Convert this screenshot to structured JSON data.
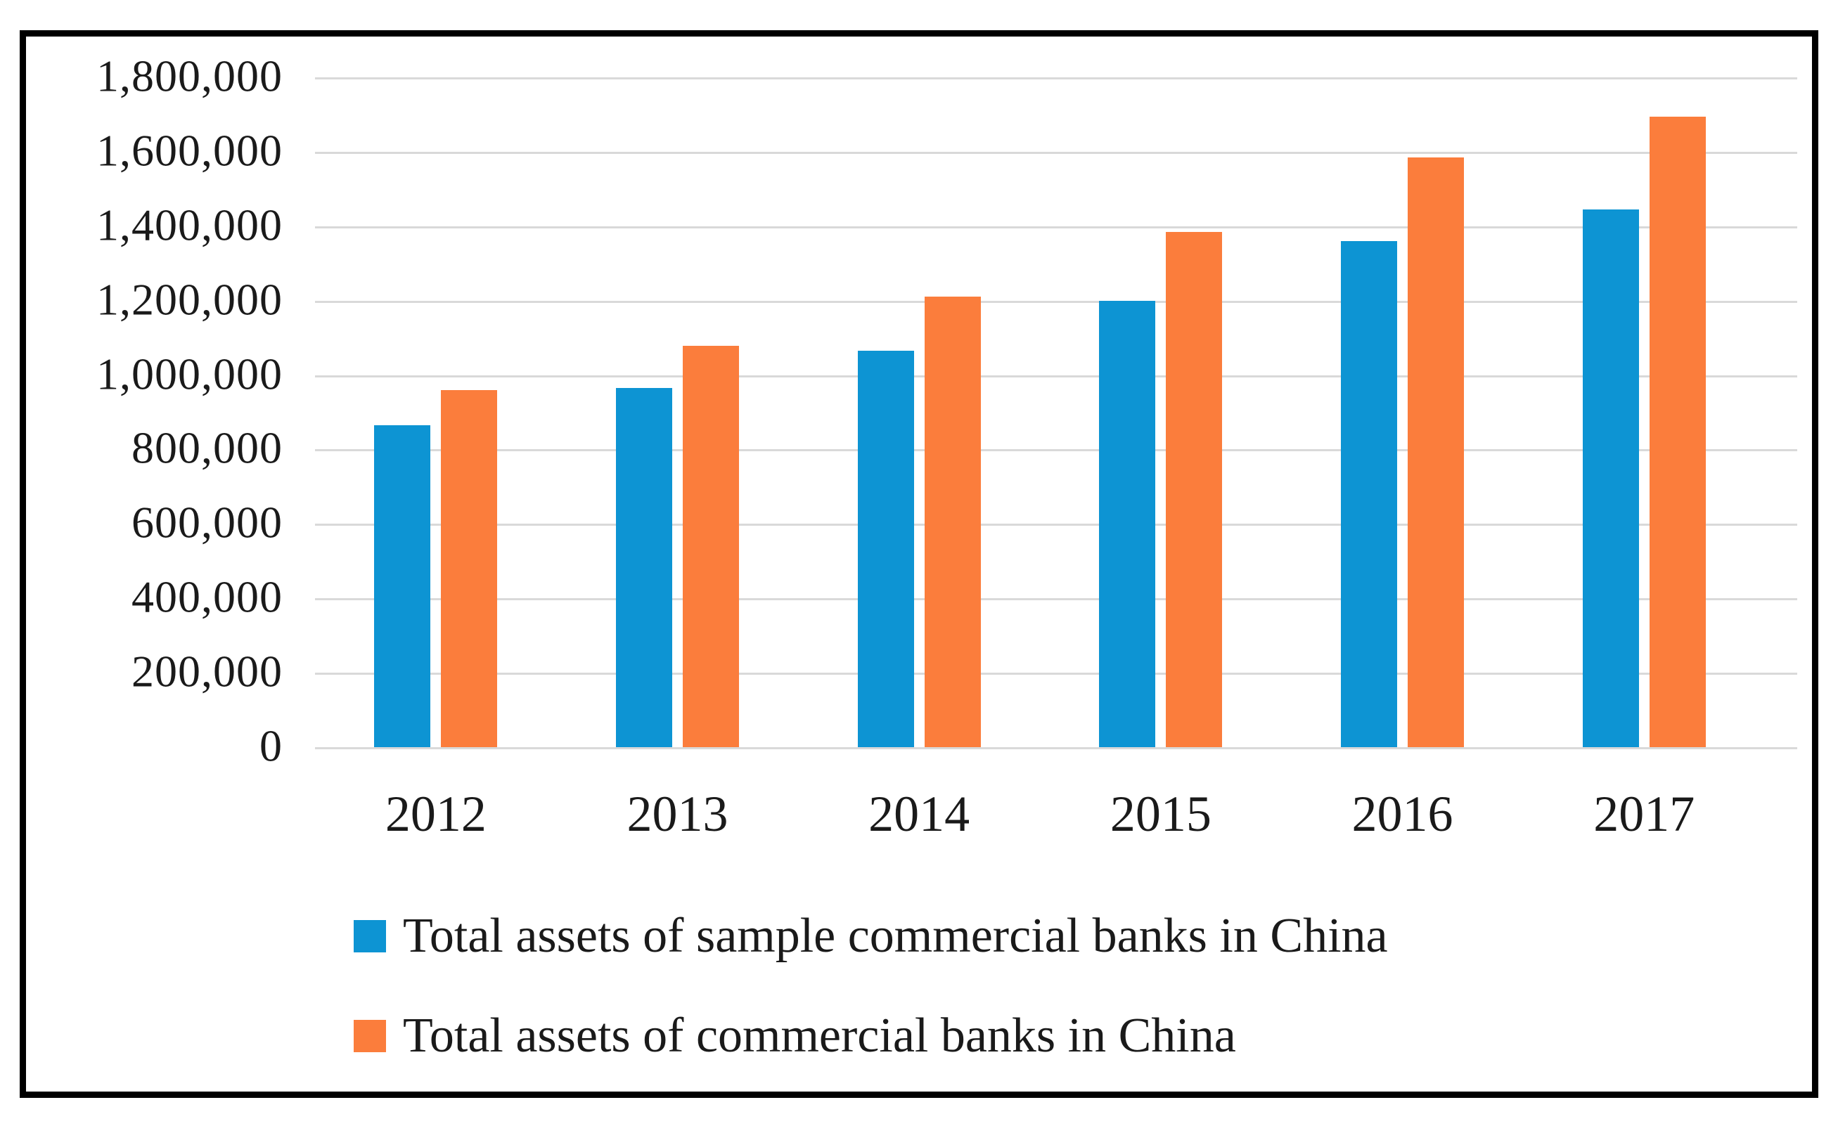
{
  "colors": {
    "series_blue": "#0d94d3",
    "series_orange": "#fb7d3c",
    "gridline": "#d9d9d9",
    "border": "#000000",
    "background": "#ffffff",
    "text": "#1a1a1a"
  },
  "chart_data": {
    "type": "bar",
    "title": "",
    "xlabel": "",
    "ylabel": "",
    "categories": [
      "2012",
      "2013",
      "2014",
      "2015",
      "2016",
      "2017"
    ],
    "series": [
      {
        "name": "Total assets of sample commercial banks in China",
        "color": "#0d94d3",
        "values": [
          865000,
          965000,
          1065000,
          1200000,
          1360000,
          1445000
        ]
      },
      {
        "name": "Total assets of commercial banks in China",
        "color": "#fb7d3c",
        "values": [
          960000,
          1078000,
          1210000,
          1385000,
          1585000,
          1695000
        ]
      }
    ],
    "ylim": [
      0,
      1800000
    ],
    "ytick_step": 200000,
    "yticks": [
      "1,800,000",
      "1,600,000",
      "1,400,000",
      "1,200,000",
      "1,000,000",
      "800,000",
      "600,000",
      "400,000",
      "200,000",
      "0"
    ],
    "grid": true,
    "gridlines": "horizontal",
    "legend_position": "bottom-left-stacked"
  }
}
